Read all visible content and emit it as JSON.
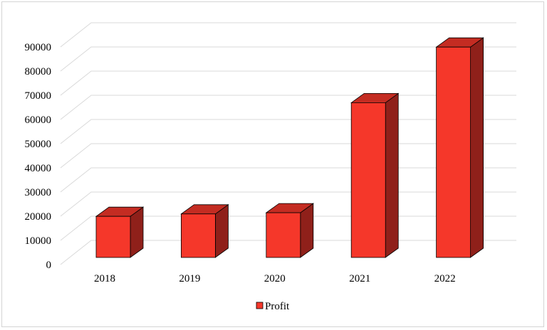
{
  "chart_data": {
    "type": "bar",
    "title": "",
    "xlabel": "",
    "ylabel": "",
    "categories": [
      "2018",
      "2019",
      "2020",
      "2021",
      "2022"
    ],
    "series": [
      {
        "name": "Profit",
        "values": [
          17000,
          18000,
          18500,
          64000,
          87000
        ]
      }
    ],
    "ylim": [
      0,
      100000
    ],
    "yticks": [
      0,
      10000,
      20000,
      30000,
      40000,
      50000,
      60000,
      70000,
      80000,
      90000
    ],
    "ytick_labels": [
      "0",
      "10000",
      "20000",
      "30000",
      "40000",
      "50000",
      "60000",
      "70000",
      "80000",
      "90000"
    ],
    "grid": true,
    "three_d": true,
    "legend_position": "bottom",
    "colors": {
      "bar_front": "#f5372a",
      "bar_top": "#c42c22",
      "bar_side": "#8f201a",
      "outline": "#000000",
      "grid": "#d9d9d9"
    }
  }
}
